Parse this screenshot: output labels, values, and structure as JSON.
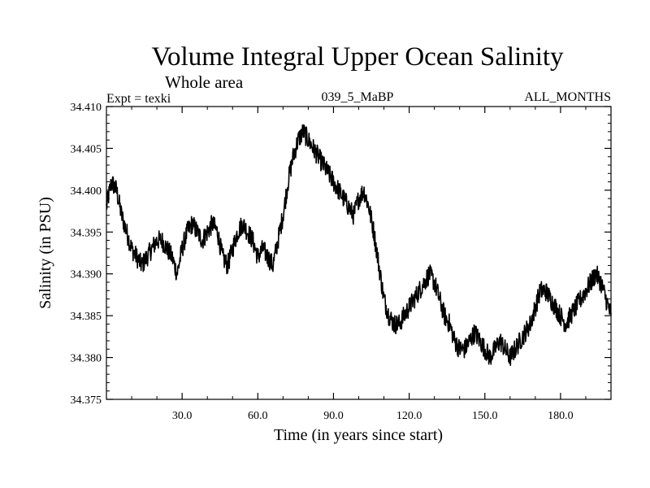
{
  "chart_data": {
    "type": "line",
    "title": "Volume Integral Upper Ocean Salinity",
    "subtitle": "Whole area",
    "header_left": "Expt = texki",
    "header_center": "039_5_MaBP",
    "header_right": "ALL_MONTHS",
    "xlabel": "Time (in years since start)",
    "ylabel": "Salinity (in PSU)",
    "xlim": [
      0,
      200
    ],
    "ylim": [
      34.375,
      34.41
    ],
    "xticks": [
      30.0,
      60.0,
      90.0,
      120.0,
      150.0,
      180.0
    ],
    "xtick_labels": [
      "30.0",
      "60.0",
      "90.0",
      "120.0",
      "150.0",
      "180.0"
    ],
    "yticks": [
      34.375,
      34.38,
      34.385,
      34.39,
      34.395,
      34.4,
      34.405,
      34.41
    ],
    "ytick_labels": [
      "34.375",
      "34.380",
      "34.385",
      "34.390",
      "34.395",
      "34.400",
      "34.405",
      "34.410"
    ],
    "grid": false,
    "series": [
      {
        "name": "salinity",
        "x": [
          0,
          2,
          4,
          6,
          8,
          10,
          12,
          14,
          16,
          18,
          20,
          22,
          24,
          26,
          28,
          30,
          32,
          34,
          36,
          38,
          40,
          42,
          44,
          46,
          48,
          50,
          52,
          54,
          56,
          58,
          60,
          62,
          64,
          66,
          68,
          70,
          72,
          74,
          76,
          78,
          80,
          82,
          84,
          86,
          88,
          90,
          92,
          94,
          96,
          98,
          100,
          102,
          104,
          106,
          108,
          110,
          112,
          114,
          116,
          118,
          120,
          122,
          124,
          126,
          128,
          130,
          132,
          134,
          136,
          138,
          140,
          142,
          144,
          146,
          148,
          150,
          152,
          154,
          156,
          158,
          160,
          162,
          164,
          166,
          168,
          170,
          172,
          174,
          176,
          178,
          180,
          182,
          184,
          186,
          188,
          190,
          192,
          194,
          196,
          198,
          200
        ],
        "y": [
          34.398,
          34.401,
          34.4,
          34.397,
          34.395,
          34.393,
          34.392,
          34.391,
          34.392,
          34.393,
          34.394,
          34.394,
          34.393,
          34.392,
          34.39,
          34.393,
          34.395,
          34.396,
          34.395,
          34.394,
          34.395,
          34.396,
          34.395,
          34.392,
          34.391,
          34.393,
          34.395,
          34.396,
          34.395,
          34.394,
          34.392,
          34.393,
          34.392,
          34.391,
          34.394,
          34.397,
          34.401,
          34.404,
          34.406,
          34.407,
          34.406,
          34.405,
          34.404,
          34.403,
          34.402,
          34.401,
          34.4,
          34.399,
          34.398,
          34.397,
          34.399,
          34.4,
          34.398,
          34.395,
          34.391,
          34.387,
          34.385,
          34.384,
          34.384,
          34.385,
          34.386,
          34.387,
          34.388,
          34.389,
          34.39,
          34.389,
          34.387,
          34.385,
          34.384,
          34.382,
          34.381,
          34.381,
          34.382,
          34.383,
          34.382,
          34.381,
          34.38,
          34.381,
          34.382,
          34.381,
          34.38,
          34.381,
          34.382,
          34.383,
          34.384,
          34.386,
          34.388,
          34.388,
          34.387,
          34.386,
          34.385,
          34.384,
          34.385,
          34.386,
          34.387,
          34.388,
          34.389,
          34.39,
          34.389,
          34.387,
          34.385
        ]
      }
    ]
  }
}
